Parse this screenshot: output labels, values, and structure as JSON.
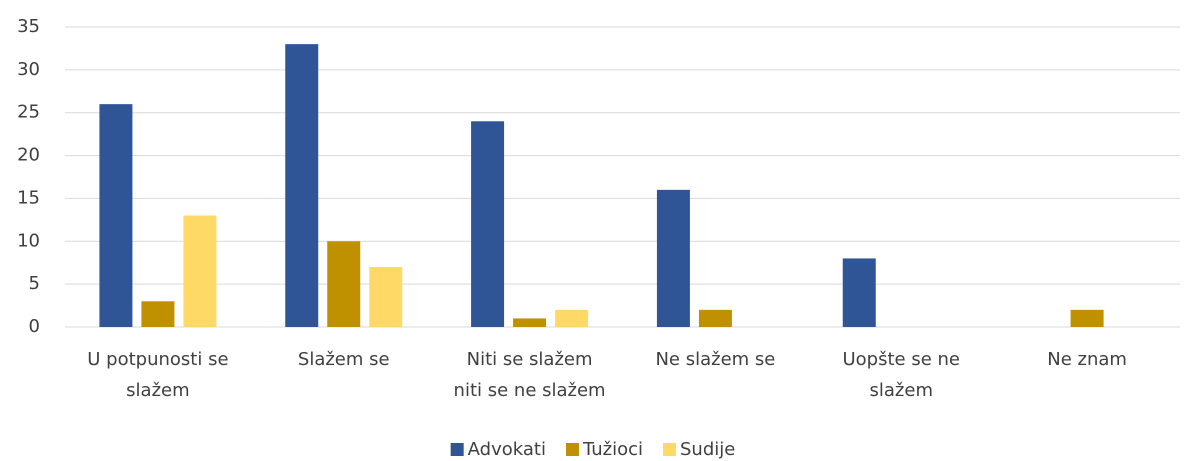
{
  "chart_data": {
    "type": "bar",
    "categories": [
      "U potpunosti se slažem",
      "Slažem se",
      "Niti se slažem niti se ne slažem",
      "Ne slažem se",
      "Uopšte se ne slažem",
      "Ne znam"
    ],
    "series": [
      {
        "name": "Advokati",
        "color": "#2f5597",
        "values": [
          26,
          33,
          24,
          16,
          8,
          0
        ]
      },
      {
        "name": "Tužioci",
        "color": "#bf9000",
        "values": [
          3,
          10,
          1,
          2,
          0,
          2
        ]
      },
      {
        "name": "Sudije",
        "color": "#ffd966",
        "values": [
          13,
          7,
          2,
          0,
          0,
          0
        ]
      }
    ],
    "ylim": [
      0,
      35
    ],
    "yticks": [
      0,
      5,
      10,
      15,
      20,
      25,
      30,
      35
    ],
    "grid": true,
    "legend": "bottom"
  }
}
